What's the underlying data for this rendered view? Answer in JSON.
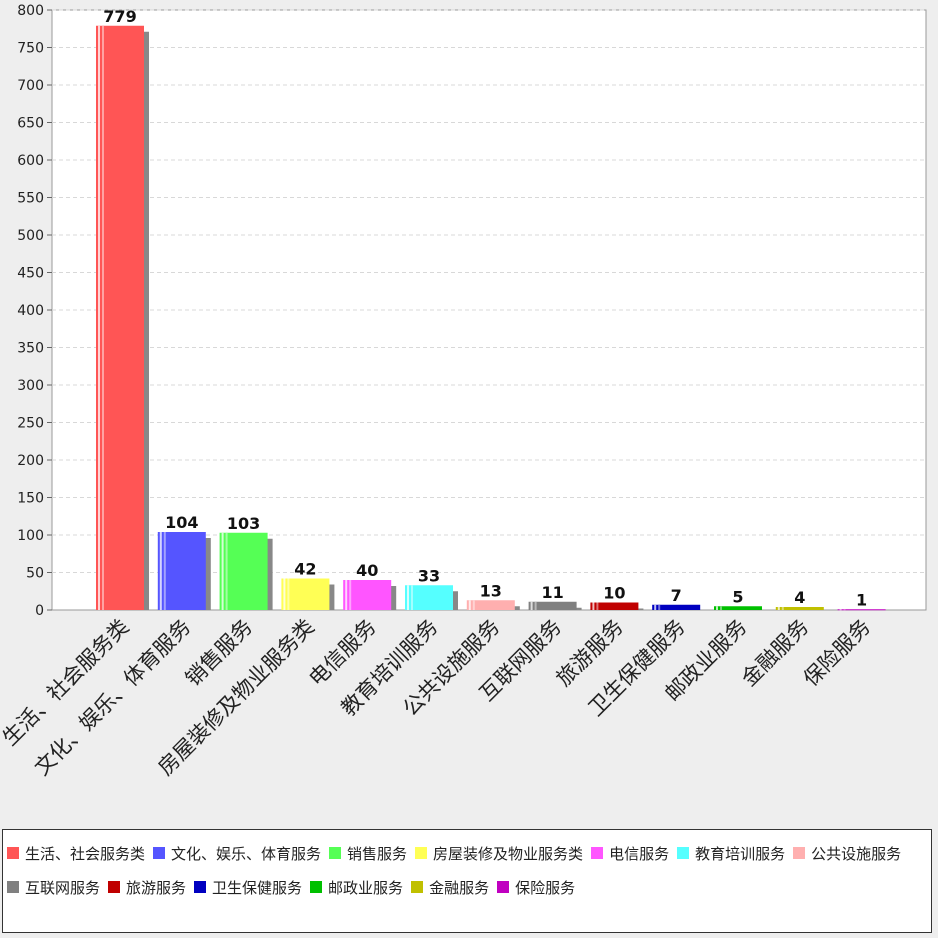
{
  "chart_data": {
    "type": "bar",
    "categories": [
      "生活、社会服务类",
      "文化、娱乐、体育服务",
      "销售服务",
      "房屋装修及物业服务类",
      "电信服务",
      "教育培训服务",
      "公共设施服务",
      "互联网服务",
      "旅游服务",
      "卫生保健服务",
      "邮政业服务",
      "金融服务",
      "保险服务"
    ],
    "values": [
      779,
      104,
      103,
      42,
      40,
      33,
      13,
      11,
      10,
      7,
      5,
      4,
      1
    ],
    "colors": [
      "#ff5555",
      "#5555ff",
      "#55ff55",
      "#ffff55",
      "#ff55ff",
      "#55ffff",
      "#ffafaf",
      "#808080",
      "#c00000",
      "#0000c0",
      "#00c000",
      "#c0c000",
      "#c000c0"
    ],
    "yticks": [
      0,
      50,
      100,
      150,
      200,
      250,
      300,
      350,
      400,
      450,
      500,
      550,
      600,
      650,
      700,
      750,
      800
    ],
    "ylim": [
      0,
      800
    ],
    "title": "",
    "xlabel": "",
    "ylabel": "",
    "grid": true,
    "legend_position": "bottom"
  }
}
